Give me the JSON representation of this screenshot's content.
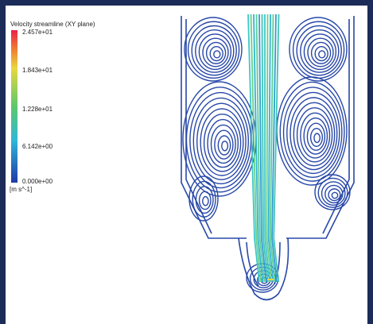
{
  "legend": {
    "title": "Velocity streamline (XY plane)",
    "ticks": [
      "2.457e+01",
      "1.843e+01",
      "1.228e+01",
      "6.142e+00",
      "0.000e+00"
    ],
    "unit": "[m s^-1]"
  }
}
